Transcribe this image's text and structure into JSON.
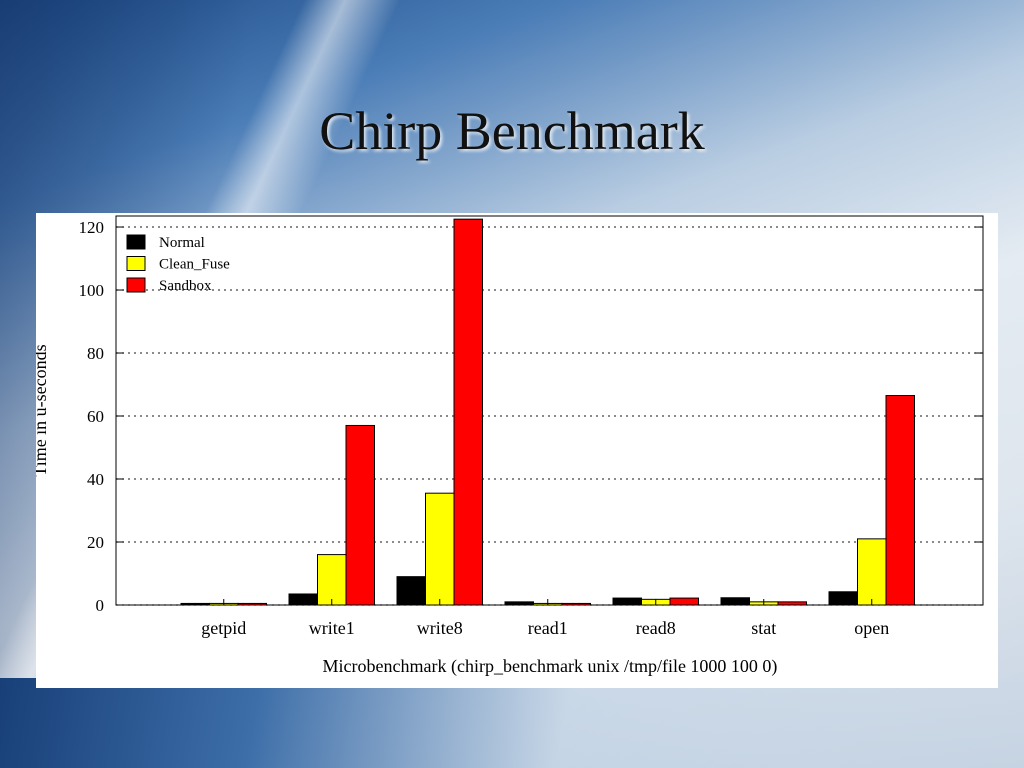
{
  "slide": {
    "title": "Chirp Benchmark"
  },
  "chart_data": {
    "type": "bar",
    "title": "",
    "xlabel": "Microbenchmark (chirp_benchmark unix /tmp/file 1000 100 0)",
    "ylabel": "Time in u-seconds",
    "ylim": [
      0,
      120
    ],
    "yticks": [
      0,
      20,
      40,
      60,
      80,
      100,
      120
    ],
    "grid": true,
    "legend_position": "top-left",
    "categories": [
      "getpid",
      "write1",
      "write8",
      "read1",
      "read8",
      "stat",
      "open"
    ],
    "series": [
      {
        "name": "Normal",
        "color": "#000000",
        "values": [
          0.5,
          3.5,
          9,
          1,
          2.2,
          2.3,
          4.2
        ]
      },
      {
        "name": "Clean_Fuse",
        "color": "#ffff00",
        "values": [
          0.5,
          16,
          35.5,
          0.5,
          1.8,
          1,
          21
        ]
      },
      {
        "name": "Sandbox",
        "color": "#ff0000",
        "values": [
          0.5,
          57,
          122.5,
          0.5,
          2.2,
          1,
          66.5
        ]
      }
    ]
  }
}
